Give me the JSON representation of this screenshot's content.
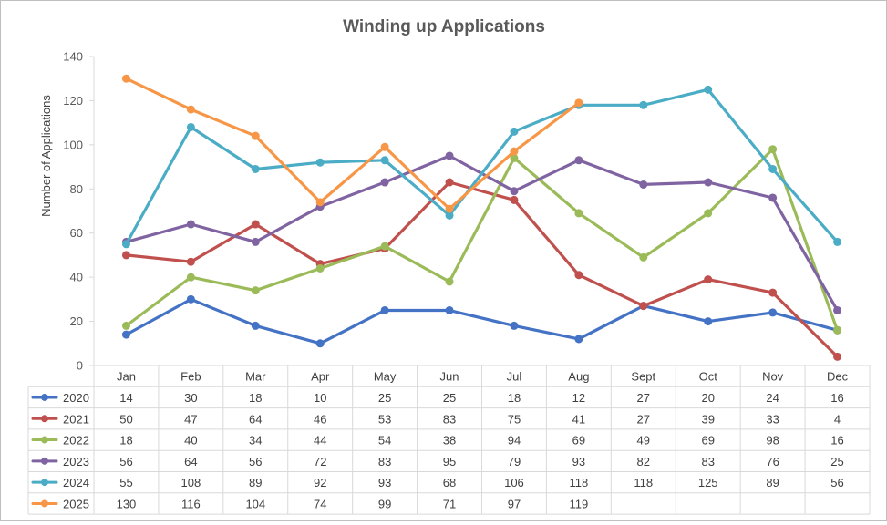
{
  "chart_data": {
    "type": "line",
    "title": "Winding up Applications",
    "ylabel": "Number of Applications",
    "xlabel": "",
    "ylim": [
      0,
      140
    ],
    "y_ticks": [
      "0",
      "20",
      "40",
      "60",
      "80",
      "100",
      "120",
      "140"
    ],
    "categories": [
      "Jan",
      "Feb",
      "Mar",
      "Apr",
      "May",
      "Jun",
      "Jul",
      "Aug",
      "Sept",
      "Oct",
      "Nov",
      "Dec"
    ],
    "grid": false,
    "legend": "data-table-left",
    "series": [
      {
        "name": "2020",
        "color": "#4472c4",
        "values": [
          14,
          30,
          18,
          10,
          25,
          25,
          18,
          12,
          27,
          20,
          24,
          16
        ]
      },
      {
        "name": "2021",
        "color": "#c0504d",
        "values": [
          50,
          47,
          64,
          46,
          53,
          83,
          75,
          41,
          27,
          39,
          33,
          4
        ]
      },
      {
        "name": "2022",
        "color": "#9bbb59",
        "values": [
          18,
          40,
          34,
          44,
          54,
          38,
          94,
          69,
          49,
          69,
          98,
          16
        ]
      },
      {
        "name": "2023",
        "color": "#8064a2",
        "values": [
          56,
          64,
          56,
          72,
          83,
          95,
          79,
          93,
          82,
          83,
          76,
          25
        ]
      },
      {
        "name": "2024",
        "color": "#4bacc6",
        "values": [
          55,
          108,
          89,
          92,
          93,
          68,
          106,
          118,
          118,
          125,
          89,
          56
        ]
      },
      {
        "name": "2025",
        "color": "#f79646",
        "values": [
          130,
          116,
          104,
          74,
          99,
          71,
          97,
          119,
          null,
          null,
          null,
          null
        ]
      }
    ]
  }
}
